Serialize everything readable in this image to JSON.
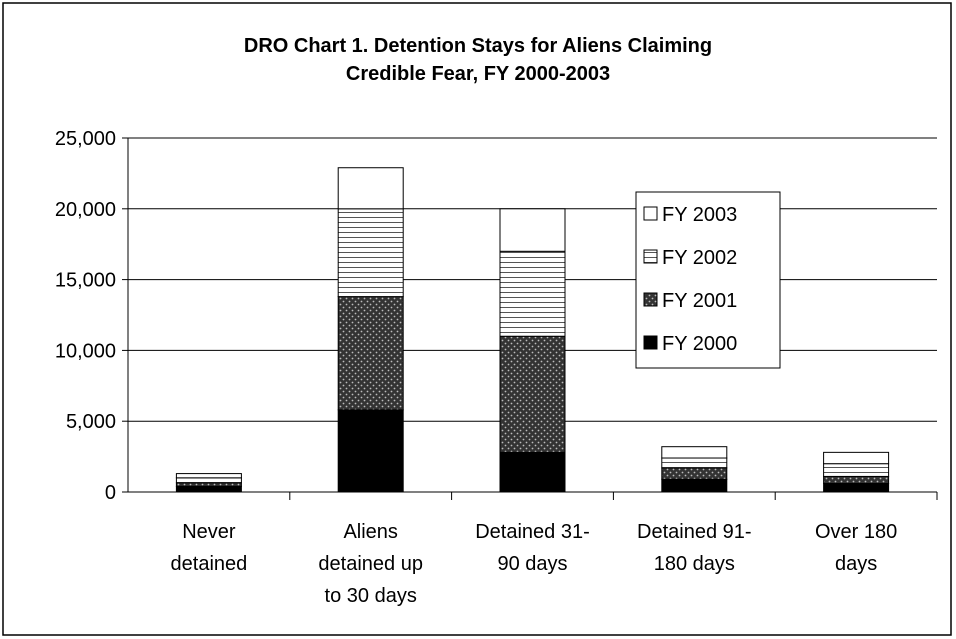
{
  "chart_data": {
    "type": "stacked_bar",
    "title": "DRO Chart 1.  Detention Stays for Aliens Claiming\nCredible Fear, FY 2000-2003",
    "categories": [
      "Never\ndetained",
      "Aliens\ndetained up\nto 30 days",
      "Detained 31-\n90 days",
      "Detained 91-\n180 days",
      "Over 180\ndays"
    ],
    "series": [
      {
        "name": "FY 2000",
        "color": "#000000",
        "pattern": "solid",
        "values": [
          400,
          5800,
          2800,
          900,
          600
        ]
      },
      {
        "name": "FY 2001",
        "color": "#333333",
        "pattern": "dots",
        "values": [
          250,
          8000,
          8200,
          800,
          500
        ]
      },
      {
        "name": "FY 2002",
        "color": "#ffffff",
        "pattern": "hlines",
        "values": [
          350,
          6200,
          6000,
          700,
          900
        ]
      },
      {
        "name": "FY 2003",
        "color": "#ffffff",
        "pattern": "solid",
        "values": [
          300,
          2900,
          3000,
          800,
          800
        ]
      }
    ],
    "ylim": [
      0,
      25000
    ],
    "yticks": [
      0,
      {
        "value": 5000,
        "label": "5,000"
      },
      {
        "value": 10000,
        "label": "10,000"
      },
      {
        "value": 15000,
        "label": "15,000"
      },
      {
        "value": 20000,
        "label": "20,000"
      },
      {
        "value": 25000,
        "label": "25,000"
      }
    ],
    "grid": true,
    "legend": "right"
  }
}
